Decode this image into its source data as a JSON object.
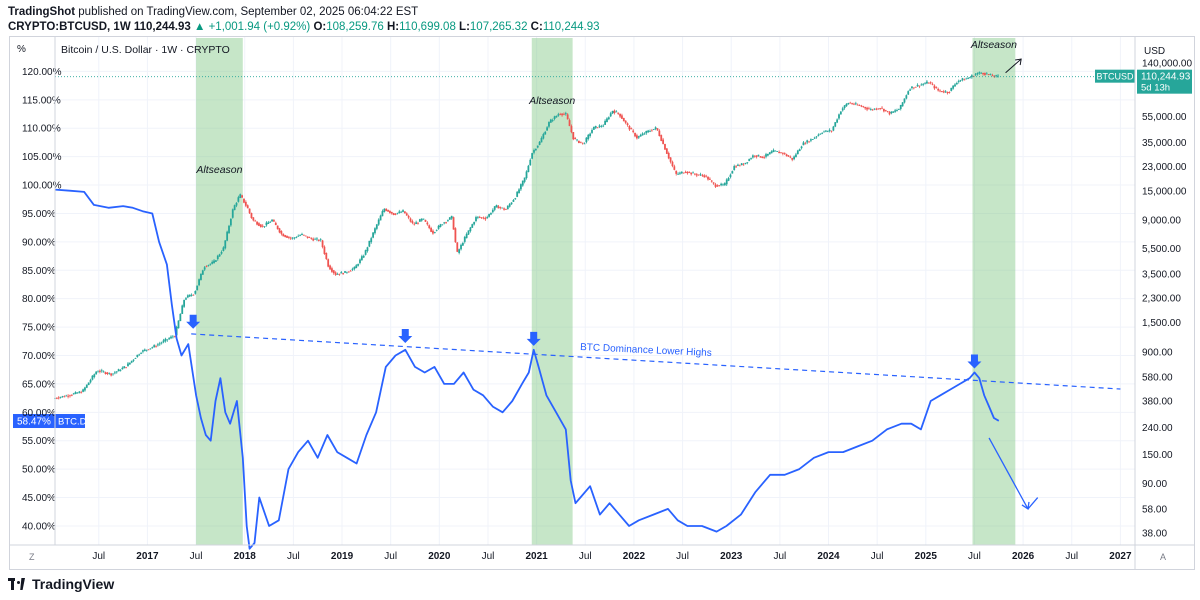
{
  "header": {
    "line1_brand": "TradingShot",
    "line1_rest": " published on TradingView.com, September 02, 2025 06:04:22 EST",
    "symbol": "CRYPTO:BTCUSD, 1W",
    "last": "110,244.93",
    "change": "▲ +1,001.94 (+0.92%)",
    "o_label": "O:",
    "o": "108,259.76",
    "h_label": "H:",
    "h": "110,699.08",
    "l_label": "L:",
    "l": "107,265.32",
    "c_label": "C:",
    "c": "110,244.93"
  },
  "footer": {
    "brand": "TradingView"
  },
  "colors": {
    "btc_up": "#26a69a",
    "btc_down": "#ef5350",
    "dominance": "#2962ff",
    "altseason": "#81c784",
    "usd_badge": "#26a69a"
  },
  "chart_data": {
    "type": "line",
    "title": "Bitcoin / U.S. Dollar · 1W · CRYPTO",
    "left_axis_unit": "%",
    "right_axis_unit": "USD",
    "left_axis_ticks": [
      "40.00%",
      "45.00%",
      "50.00%",
      "55.00%",
      "60.00%",
      "65.00%",
      "70.00%",
      "75.00%",
      "80.00%",
      "85.00%",
      "90.00%",
      "95.00%",
      "100.00%",
      "105.00%",
      "110.00%",
      "115.00%",
      "120.00%"
    ],
    "right_axis_ticks": [
      "38.00",
      "58.00",
      "90.00",
      "150.00",
      "240.00",
      "380.00",
      "580.00",
      "900.00",
      "1,500.00",
      "2,300.00",
      "3,500.00",
      "5,500.00",
      "9,000.00",
      "15,000.00",
      "23,000.00",
      "35,000.00",
      "55,000.00",
      "140,000.00"
    ],
    "x_ticks": [
      "Jul",
      "2017",
      "Jul",
      "2018",
      "Jul",
      "2019",
      "Jul",
      "2020",
      "Jul",
      "2021",
      "Jul",
      "2022",
      "Jul",
      "2023",
      "Jul",
      "2024",
      "Jul",
      "2025",
      "Jul",
      "2026",
      "Jul",
      "2027"
    ],
    "x_range": [
      2016.05,
      2027.15
    ],
    "left_axis_range": [
      37,
      125
    ],
    "btc_dominance": {
      "name": "BTC.D",
      "last_label": "58.47%",
      "points": [
        [
          2016.05,
          99.2
        ],
        [
          2016.2,
          99
        ],
        [
          2016.35,
          98.8
        ],
        [
          2016.45,
          96.5
        ],
        [
          2016.6,
          96
        ],
        [
          2016.75,
          96.3
        ],
        [
          2016.85,
          96
        ],
        [
          2016.95,
          95.4
        ],
        [
          2017.05,
          95
        ],
        [
          2017.12,
          90
        ],
        [
          2017.2,
          86
        ],
        [
          2017.25,
          79
        ],
        [
          2017.3,
          73
        ],
        [
          2017.35,
          70
        ],
        [
          2017.42,
          72
        ],
        [
          2017.5,
          63
        ],
        [
          2017.55,
          59
        ],
        [
          2017.6,
          56
        ],
        [
          2017.65,
          55
        ],
        [
          2017.7,
          62
        ],
        [
          2017.75,
          66
        ],
        [
          2017.8,
          60
        ],
        [
          2017.85,
          58
        ],
        [
          2017.92,
          62
        ],
        [
          2017.98,
          52
        ],
        [
          2018.02,
          40
        ],
        [
          2018.05,
          36
        ],
        [
          2018.1,
          37
        ],
        [
          2018.15,
          45
        ],
        [
          2018.25,
          40
        ],
        [
          2018.35,
          41
        ],
        [
          2018.45,
          50
        ],
        [
          2018.55,
          53
        ],
        [
          2018.65,
          55
        ],
        [
          2018.75,
          52
        ],
        [
          2018.85,
          56
        ],
        [
          2018.95,
          53
        ],
        [
          2019.05,
          52
        ],
        [
          2019.15,
          51
        ],
        [
          2019.25,
          56
        ],
        [
          2019.35,
          60
        ],
        [
          2019.45,
          68
        ],
        [
          2019.55,
          70
        ],
        [
          2019.65,
          71
        ],
        [
          2019.75,
          68
        ],
        [
          2019.85,
          67
        ],
        [
          2019.95,
          68
        ],
        [
          2020.05,
          65
        ],
        [
          2020.15,
          65
        ],
        [
          2020.25,
          67
        ],
        [
          2020.35,
          64
        ],
        [
          2020.45,
          63
        ],
        [
          2020.55,
          61
        ],
        [
          2020.65,
          60
        ],
        [
          2020.75,
          62
        ],
        [
          2020.85,
          65
        ],
        [
          2020.92,
          67
        ],
        [
          2020.97,
          71
        ],
        [
          2021.02,
          68
        ],
        [
          2021.1,
          63
        ],
        [
          2021.2,
          60
        ],
        [
          2021.3,
          57
        ],
        [
          2021.35,
          48
        ],
        [
          2021.4,
          44
        ],
        [
          2021.45,
          45
        ],
        [
          2021.55,
          47
        ],
        [
          2021.65,
          42
        ],
        [
          2021.75,
          44
        ],
        [
          2021.85,
          42
        ],
        [
          2021.95,
          40
        ],
        [
          2022.05,
          41
        ],
        [
          2022.2,
          42
        ],
        [
          2022.35,
          43
        ],
        [
          2022.45,
          41
        ],
        [
          2022.55,
          40
        ],
        [
          2022.7,
          40
        ],
        [
          2022.85,
          39
        ],
        [
          2022.95,
          40
        ],
        [
          2023.1,
          42
        ],
        [
          2023.25,
          46
        ],
        [
          2023.4,
          49
        ],
        [
          2023.55,
          49
        ],
        [
          2023.7,
          50
        ],
        [
          2023.85,
          52
        ],
        [
          2024.0,
          53
        ],
        [
          2024.15,
          53
        ],
        [
          2024.3,
          54
        ],
        [
          2024.45,
          55
        ],
        [
          2024.6,
          57
        ],
        [
          2024.75,
          58
        ],
        [
          2024.85,
          58
        ],
        [
          2024.95,
          57
        ],
        [
          2025.05,
          62
        ],
        [
          2025.15,
          63
        ],
        [
          2025.25,
          64
        ],
        [
          2025.35,
          65
        ],
        [
          2025.45,
          66
        ],
        [
          2025.5,
          67
        ],
        [
          2025.55,
          66
        ],
        [
          2025.6,
          63
        ],
        [
          2025.65,
          61
        ],
        [
          2025.7,
          59
        ],
        [
          2025.75,
          58.5
        ]
      ]
    },
    "btcusd": {
      "name": "BTCUSD",
      "last_label": "110,244.93",
      "countdown": "5d 13h",
      "closes": [
        [
          2016.05,
          400
        ],
        [
          2016.2,
          420
        ],
        [
          2016.35,
          450
        ],
        [
          2016.5,
          650
        ],
        [
          2016.65,
          610
        ],
        [
          2016.8,
          700
        ],
        [
          2016.95,
          900
        ],
        [
          2017.1,
          1000
        ],
        [
          2017.2,
          1100
        ],
        [
          2017.3,
          1200
        ],
        [
          2017.4,
          2300
        ],
        [
          2017.5,
          2500
        ],
        [
          2017.6,
          4000
        ],
        [
          2017.7,
          4300
        ],
        [
          2017.8,
          5500
        ],
        [
          2017.9,
          11000
        ],
        [
          2017.97,
          14000
        ],
        [
          2018.05,
          11000
        ],
        [
          2018.1,
          9000
        ],
        [
          2018.2,
          8000
        ],
        [
          2018.3,
          9000
        ],
        [
          2018.4,
          7000
        ],
        [
          2018.5,
          6500
        ],
        [
          2018.6,
          7000
        ],
        [
          2018.7,
          6500
        ],
        [
          2018.8,
          6300
        ],
        [
          2018.88,
          4000
        ],
        [
          2018.95,
          3500
        ],
        [
          2019.05,
          3600
        ],
        [
          2019.15,
          3900
        ],
        [
          2019.25,
          5000
        ],
        [
          2019.35,
          7500
        ],
        [
          2019.45,
          11000
        ],
        [
          2019.55,
          10000
        ],
        [
          2019.65,
          10500
        ],
        [
          2019.75,
          8300
        ],
        [
          2019.85,
          9200
        ],
        [
          2019.95,
          7200
        ],
        [
          2020.05,
          8500
        ],
        [
          2020.15,
          9500
        ],
        [
          2020.2,
          5000
        ],
        [
          2020.3,
          7000
        ],
        [
          2020.4,
          9500
        ],
        [
          2020.5,
          9300
        ],
        [
          2020.6,
          11500
        ],
        [
          2020.7,
          10800
        ],
        [
          2020.8,
          13500
        ],
        [
          2020.9,
          19000
        ],
        [
          2020.97,
          29000
        ],
        [
          2021.05,
          35000
        ],
        [
          2021.15,
          50000
        ],
        [
          2021.25,
          58000
        ],
        [
          2021.32,
          57000
        ],
        [
          2021.4,
          37000
        ],
        [
          2021.5,
          34000
        ],
        [
          2021.6,
          45000
        ],
        [
          2021.7,
          47000
        ],
        [
          2021.8,
          61000
        ],
        [
          2021.87,
          57000
        ],
        [
          2021.95,
          47000
        ],
        [
          2022.05,
          38000
        ],
        [
          2022.15,
          42000
        ],
        [
          2022.25,
          45000
        ],
        [
          2022.35,
          30000
        ],
        [
          2022.45,
          20000
        ],
        [
          2022.55,
          21000
        ],
        [
          2022.65,
          20000
        ],
        [
          2022.75,
          19500
        ],
        [
          2022.85,
          16500
        ],
        [
          2022.95,
          16600
        ],
        [
          2023.05,
          23000
        ],
        [
          2023.15,
          24000
        ],
        [
          2023.25,
          28000
        ],
        [
          2023.35,
          27000
        ],
        [
          2023.45,
          30000
        ],
        [
          2023.55,
          29000
        ],
        [
          2023.65,
          26000
        ],
        [
          2023.75,
          34000
        ],
        [
          2023.85,
          37000
        ],
        [
          2023.95,
          42000
        ],
        [
          2024.05,
          43000
        ],
        [
          2024.15,
          62000
        ],
        [
          2024.22,
          70000
        ],
        [
          2024.35,
          66000
        ],
        [
          2024.45,
          62000
        ],
        [
          2024.55,
          64000
        ],
        [
          2024.65,
          58000
        ],
        [
          2024.75,
          63000
        ],
        [
          2024.85,
          90000
        ],
        [
          2024.95,
          95000
        ],
        [
          2025.05,
          100000
        ],
        [
          2025.15,
          86000
        ],
        [
          2025.25,
          84000
        ],
        [
          2025.35,
          103000
        ],
        [
          2025.45,
          107000
        ],
        [
          2025.55,
          117000
        ],
        [
          2025.6,
          118000
        ],
        [
          2025.65,
          115000
        ],
        [
          2025.7,
          112000
        ],
        [
          2025.75,
          110245
        ]
      ]
    },
    "altseason_zones": [
      {
        "label": "Altseason",
        "from": 2017.5,
        "to": 2017.98
      },
      {
        "label": "Altseason",
        "from": 2020.95,
        "to": 2021.37
      },
      {
        "label": "Altseason",
        "from": 2025.48,
        "to": 2025.92
      }
    ],
    "trendline": {
      "label": "BTC Dominance Lower Highs",
      "from": [
        2017.45,
        73.8
      ],
      "to": [
        2027.0,
        64.1
      ]
    },
    "highlight_arrows": [
      [
        2017.47,
        74
      ],
      [
        2019.65,
        71.5
      ],
      [
        2020.97,
        71
      ],
      [
        2025.5,
        67
      ]
    ],
    "projection_arrow": {
      "from": [
        2025.65,
        55.5
      ],
      "to": [
        2026.05,
        43
      ]
    },
    "projection_rebound": {
      "from": [
        2026.05,
        43
      ],
      "to": [
        2026.15,
        45
      ]
    },
    "btc_projection_arrow": {
      "from": [
        2025.82,
        118000
      ],
      "to": [
        2025.98,
        150000
      ]
    }
  }
}
